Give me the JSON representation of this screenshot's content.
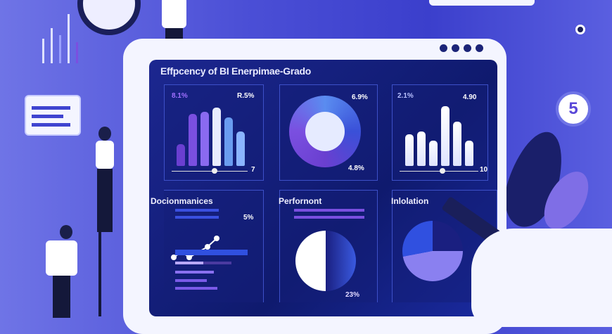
{
  "dashboard": {
    "title": "Effpcency of BI Enerpimae-Grado",
    "panel1": {
      "label_left": "8.1%",
      "label_right": "R.5%",
      "slider_end": "7",
      "bars": [
        0.34,
        0.82,
        0.86,
        0.92,
        0.77,
        0.55
      ],
      "colors": [
        "#6a3fd0",
        "#7a4fe0",
        "#8a6af0",
        "#e8ecff",
        "#6a9cf0",
        "#8ab4ff"
      ]
    },
    "panel2": {
      "label_top": "6.9%",
      "label_bottom": "4.8%"
    },
    "panel3": {
      "label_left": "2.1%",
      "label_right": "4.90",
      "slider_end": "10",
      "bars": [
        0.5,
        0.55,
        0.4,
        0.95,
        0.7,
        0.4
      ]
    },
    "panel4": {
      "title": "Docionmanices",
      "label": "5%"
    },
    "panel5": {
      "title": "Perfornont",
      "label": "23%"
    },
    "panel6": {
      "title": "Inlolation"
    }
  },
  "badge": {
    "value": "5"
  },
  "colors": {
    "accent": "#4b4fd6",
    "screen": "#0f1a6e"
  }
}
